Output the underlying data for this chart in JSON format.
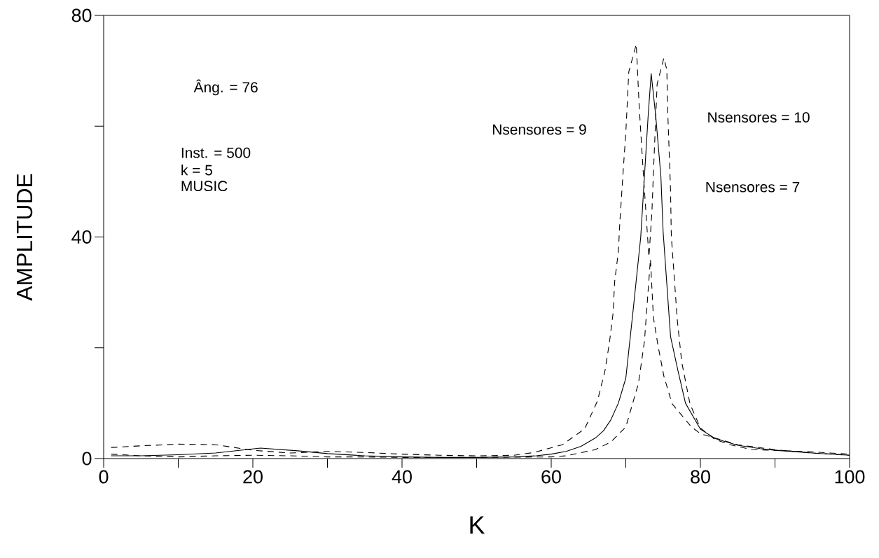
{
  "chart_data": {
    "type": "line",
    "xlabel": "K",
    "ylabel": "AMPLITUDE",
    "xlim": [
      0,
      100
    ],
    "ylim": [
      0,
      80
    ],
    "xticks": [
      0,
      {
        "value": 10,
        "label": null
      },
      20,
      {
        "value": 30,
        "label": null
      },
      40,
      {
        "value": 50,
        "label": null
      },
      60,
      {
        "value": 70,
        "label": null
      },
      80,
      {
        "value": 90,
        "label": null
      },
      100
    ],
    "yticks": [
      0,
      {
        "value": 20,
        "label": null
      },
      40,
      {
        "value": 60,
        "label": null
      },
      80
    ],
    "grid": false,
    "marker": "none",
    "annotations": [
      "Âng. = 76",
      "Inst. = 500",
      "k = 5",
      "MUSIC",
      "Nsensores = 9",
      "Nsensores = 10",
      "Nsensores = 7"
    ],
    "series": [
      {
        "color": "#000000",
        "line_style": "solid",
        "x": [
          1,
          5,
          10,
          15,
          21,
          26,
          30,
          35,
          40,
          45,
          50,
          55,
          58,
          60,
          62,
          64,
          66,
          67,
          68,
          69,
          70,
          71,
          72,
          72.5,
          73,
          73.4,
          74,
          74.7,
          75,
          76,
          77,
          78,
          80,
          82,
          85,
          88,
          90,
          95,
          100
        ],
        "values": [
          0.5,
          0.5,
          0.7,
          1.0,
          1.9,
          1.4,
          0.9,
          0.5,
          0.3,
          0.2,
          0.2,
          0.3,
          0.5,
          0.8,
          1.3,
          2.2,
          3.8,
          5.0,
          7.0,
          10,
          14.5,
          27,
          40,
          51,
          62,
          69.5,
          62,
          51,
          41,
          22,
          15.8,
          10,
          5.3,
          3.6,
          2.4,
          1.8,
          1.5,
          1.0,
          0.6
        ]
      },
      {
        "color": "#000000",
        "line_style": "dashed",
        "x": [
          1,
          5,
          10,
          15,
          20,
          25,
          30,
          35,
          40,
          45,
          50,
          55,
          57.7,
          61.5,
          64.5,
          66.2,
          67.2,
          67.8,
          68.3,
          68.5,
          69,
          69.2,
          69.7,
          70,
          70.4,
          71.4,
          71.8,
          72.3,
          72.8,
          73.1,
          73.5,
          73.7,
          74.2,
          75.1,
          75.5,
          75.6,
          75.8,
          76,
          76.1,
          76.5,
          76.9,
          77.5,
          78.6,
          80,
          81.9,
          84,
          86.9,
          90,
          95,
          100
        ],
        "values": [
          2.0,
          2.3,
          2.6,
          2.5,
          1.5,
          1.0,
          1.3,
          1.1,
          0.8,
          0.6,
          0.5,
          0.6,
          1.1,
          2.5,
          5.4,
          10.4,
          15.8,
          20.9,
          26.3,
          31.9,
          37.3,
          42.7,
          53,
          58.8,
          69.8,
          74.8,
          63.4,
          52.5,
          42.4,
          36.4,
          44.5,
          51.6,
          67.6,
          72.3,
          70.2,
          63.4,
          55.9,
          48.3,
          40.2,
          32.6,
          25,
          17.4,
          9.9,
          5.5,
          3.5,
          2.5,
          1.6,
          1.5,
          1.2,
          0.8
        ]
      },
      {
        "color": "#000000",
        "line_style": "dashed",
        "x": [
          1,
          5,
          10,
          15,
          20,
          25,
          30,
          35,
          40,
          50,
          60,
          62,
          65.9,
          68,
          70,
          71.7,
          72.5,
          73.3,
          73.7,
          74.3,
          75.1,
          76.2,
          78.8,
          80,
          85,
          90,
          95,
          100
        ],
        "values": [
          0.8,
          0.5,
          0.3,
          0.5,
          0.6,
          0.5,
          0.3,
          0.3,
          0.2,
          0.2,
          0.3,
          0.5,
          1.6,
          3.0,
          5.7,
          13.6,
          21.2,
          36,
          25.5,
          20.5,
          14.9,
          9.9,
          5.7,
          4.5,
          2.5,
          1.6,
          1.0,
          0.6
        ]
      }
    ]
  }
}
